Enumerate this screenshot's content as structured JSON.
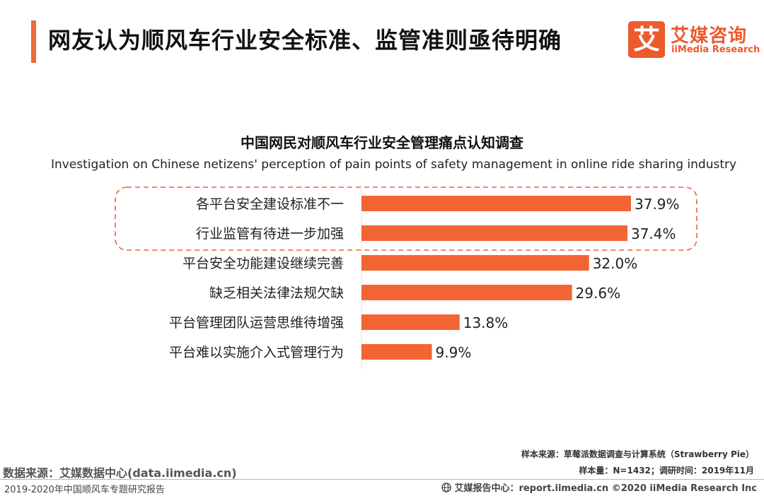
{
  "header": {
    "title": "网友认为顺风车行业安全标准、监管准则亟待明确",
    "accent_color": "#ec6a3c",
    "logo": {
      "mark": "艾",
      "name": "艾媒咨询",
      "name_en": "iiMedia Research",
      "color": "#ec5a2e"
    }
  },
  "chart_data": {
    "type": "bar",
    "orientation": "horizontal",
    "title": "中国网民对顺风车行业安全管理痛点认知调查",
    "subtitle": "Investigation on Chinese netizens' perception of pain points of safety management in online ride sharing industry",
    "categories": [
      "各平台安全建设标准不一",
      "行业监管有待进一步加强",
      "平台安全功能建设继续完善",
      "缺乏相关法律法规欠缺",
      "平台管理团队运营思维待增强",
      "平台难以实施介入式管理行为"
    ],
    "values": [
      37.9,
      37.4,
      32.0,
      29.6,
      13.8,
      9.9
    ],
    "value_labels": [
      "37.9%",
      "37.4%",
      "32.0%",
      "29.6%",
      "13.8%",
      "9.9%"
    ],
    "unit": "%",
    "xlim": [
      0,
      40
    ],
    "highlighted_categories": [
      0,
      1
    ],
    "bar_color": "#f26533",
    "highlight_box_color": "#e8643a"
  },
  "sources": {
    "sample_source": "样本来源：草莓派数据调查与计算系统（Strawberry Pie）",
    "sample_size": "样本量：N=1432；调研时间：2019年11月"
  },
  "footer": {
    "data_source": "数据来源：艾媒数据中心(data.iimedia.cn)",
    "report_title": "2019-2020年中国顺风车专题研究报告",
    "report_center": "艾媒报告中心：report.iimedia.cn  ©2020  iiMedia Research  Inc"
  }
}
